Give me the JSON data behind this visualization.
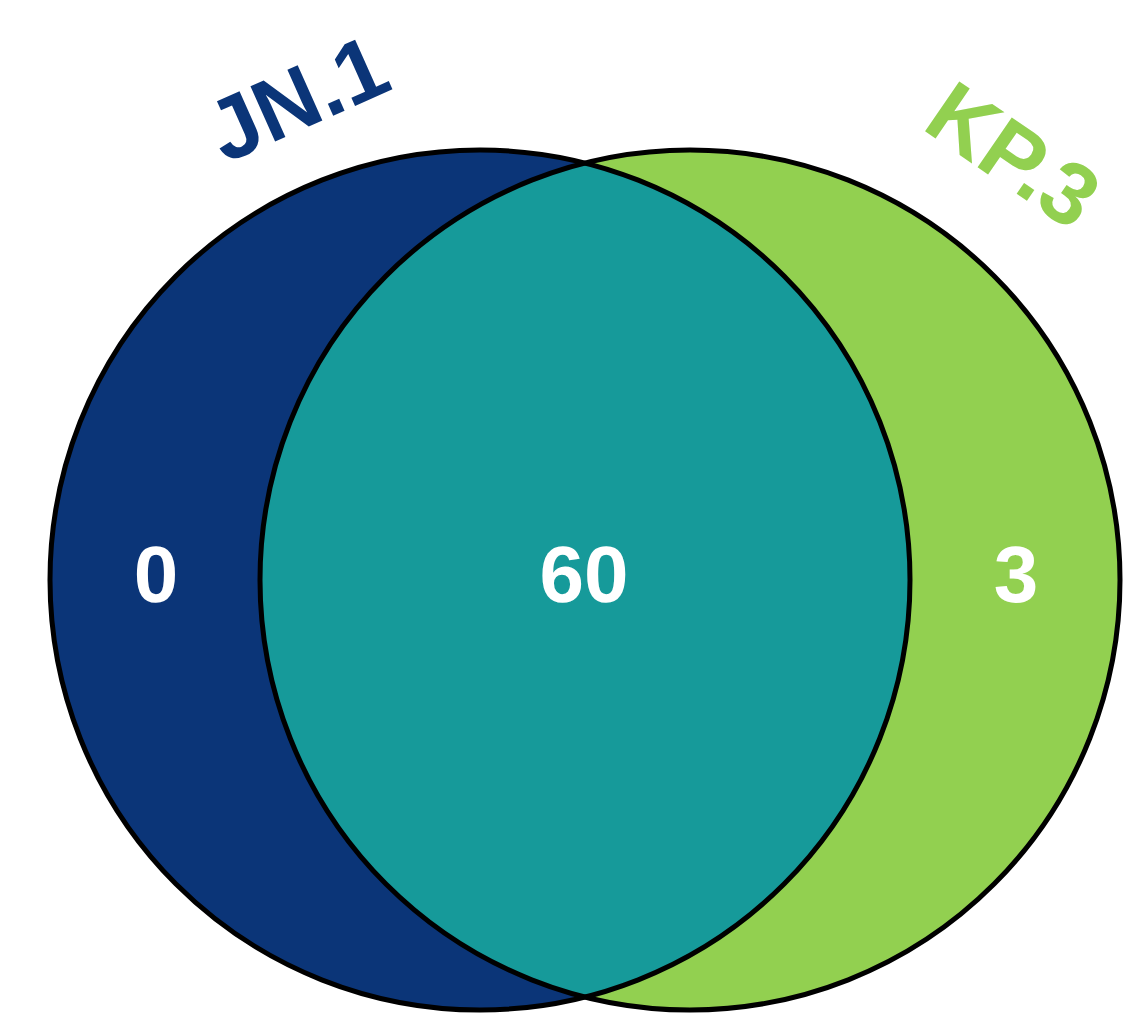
{
  "chart_data": {
    "type": "other",
    "categories": [
      "JN.1",
      null,
      "KP.3"
    ],
    "values": [
      0,
      60,
      3
    ],
    "colors": [
      "#0b3578",
      "#169a9a",
      "#92d050"
    ],
    "data_labels": true
  }
}
